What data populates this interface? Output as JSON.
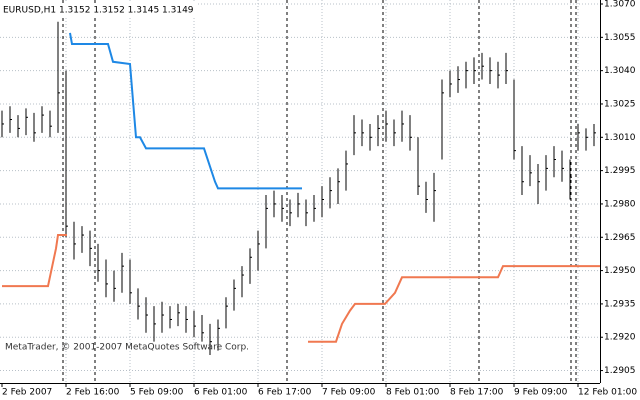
{
  "chart_data": {
    "type": "ohlc",
    "title": "EURUSD,H1  1.3152 1.3152 1.3145 1.3149",
    "annotation": "MetaTrader, © 2001-2007 MetaQuotes Software Corp.",
    "x": [
      0,
      2,
      4,
      6,
      8,
      10,
      12,
      14,
      16,
      18,
      20,
      22,
      24,
      26,
      28,
      30,
      32,
      34,
      36,
      38,
      40,
      42,
      44,
      46,
      48,
      50,
      52,
      54,
      56,
      58,
      60,
      62,
      64,
      66,
      68,
      70,
      72,
      74,
      76,
      78,
      80,
      82,
      84,
      86,
      88,
      90,
      92,
      94,
      96,
      98,
      100,
      102,
      104,
      106,
      108,
      110,
      112,
      114,
      116,
      118,
      120,
      122,
      124,
      126,
      128,
      130,
      132,
      134,
      136,
      138,
      140,
      142,
      144,
      146,
      148
    ],
    "high": [
      1.3022,
      1.3024,
      1.302,
      1.3023,
      1.3021,
      1.3024,
      1.3022,
      1.3062,
      1.304,
      1.2972,
      1.297,
      1.2968,
      1.2962,
      1.2955,
      1.295,
      1.2958,
      1.2955,
      1.2942,
      1.2938,
      1.2934,
      1.2936,
      1.2934,
      1.2935,
      1.2934,
      1.2932,
      1.293,
      1.2926,
      1.2928,
      1.2938,
      1.2946,
      1.2952,
      1.296,
      1.2968,
      1.2984,
      1.2986,
      1.2984,
      1.2982,
      1.2985,
      1.2982,
      1.2984,
      1.2988,
      1.2992,
      1.2996,
      1.3004,
      1.302,
      1.3018,
      1.3016,
      1.302,
      1.3022,
      1.3018,
      1.3022,
      1.302,
      1.301,
      1.299,
      1.2994,
      1.3036,
      1.304,
      1.3042,
      1.3044,
      1.3046,
      1.3048,
      1.3046,
      1.3044,
      1.3048,
      1.3036,
      1.3006,
      1.3002,
      1.2998,
      1.3002,
      1.3006,
      1.3004,
      1.3,
      1.3016,
      1.3014,
      1.3016
    ],
    "low": [
      1.301,
      1.3012,
      1.301,
      1.3011,
      1.3008,
      1.3012,
      1.301,
      1.3012,
      1.2965,
      1.2955,
      1.2958,
      1.2952,
      1.2945,
      1.2938,
      1.2936,
      1.294,
      1.2935,
      1.2928,
      1.2922,
      1.2918,
      1.2922,
      1.2924,
      1.2925,
      1.2922,
      1.292,
      1.2918,
      1.2912,
      1.2914,
      1.2924,
      1.2932,
      1.2938,
      1.2944,
      1.295,
      1.296,
      1.2974,
      1.2972,
      1.297,
      1.2974,
      1.297,
      1.2972,
      1.2974,
      1.2978,
      1.298,
      1.2986,
      1.3002,
      1.3006,
      1.3004,
      1.3006,
      1.3008,
      1.3006,
      1.3008,
      1.3004,
      1.2984,
      1.2976,
      1.2972,
      1.3,
      1.3028,
      1.303,
      1.3032,
      1.3034,
      1.3036,
      1.3034,
      1.3032,
      1.3034,
      1.3,
      1.2984,
      1.2988,
      1.298,
      1.2986,
      1.2992,
      1.299,
      1.2982,
      1.3004,
      1.3004,
      1.3006
    ],
    "close": [
      1.3016,
      1.3018,
      1.3014,
      1.3019,
      1.3012,
      1.302,
      1.3015,
      1.303,
      1.297,
      1.2962,
      1.2966,
      1.296,
      1.295,
      1.2944,
      1.2942,
      1.2952,
      1.294,
      1.2934,
      1.293,
      1.2926,
      1.293,
      1.2928,
      1.2931,
      1.2928,
      1.2925,
      1.2922,
      1.2918,
      1.2924,
      1.2934,
      1.2942,
      1.2948,
      1.2956,
      1.2962,
      1.2978,
      1.298,
      1.2978,
      1.2976,
      1.298,
      1.2976,
      1.2978,
      1.2982,
      1.2986,
      1.299,
      1.2998,
      1.3012,
      1.3012,
      1.301,
      1.3014,
      1.3016,
      1.3012,
      1.3016,
      1.301,
      1.2988,
      1.2982,
      1.2986,
      1.303,
      1.3034,
      1.3036,
      1.304,
      1.304,
      1.3042,
      1.304,
      1.3038,
      1.304,
      1.3004,
      1.299,
      1.2994,
      1.299,
      1.2996,
      1.3,
      1.2996,
      1.2992,
      1.3012,
      1.301,
      1.3012
    ],
    "bar_color": "#000000",
    "lines": [
      {
        "color": "#1e88e5",
        "x": [
          17,
          17.5,
          26.5,
          27.75,
          32,
          33.5,
          34.5,
          36,
          50.5,
          53.25,
          54,
          75
        ],
        "values": [
          1.3057,
          1.3052,
          1.3052,
          1.3044,
          1.3043,
          1.301,
          1.301,
          1.3005,
          1.3005,
          1.299,
          1.2987,
          1.2987
        ]
      },
      {
        "color": "#f07850",
        "x": [
          0,
          11.5,
          13.5,
          14,
          16.25
        ],
        "values": [
          1.2943,
          1.2943,
          1.296,
          1.2966,
          1.2966
        ]
      },
      {
        "color": "#f07850",
        "x": [
          76.5,
          83.5,
          85,
          87,
          88.25,
          95.75,
          98.25,
          100,
          124,
          125.25,
          149.5
        ],
        "values": [
          1.2918,
          1.2918,
          1.2926,
          1.2932,
          1.2935,
          1.2935,
          1.294,
          1.2947,
          1.2947,
          1.2952,
          1.2952
        ]
      }
    ],
    "xlim": [
      0,
      149.5
    ],
    "xticks": [
      {
        "value": 0,
        "label": "2 Feb 2007"
      },
      {
        "value": 16,
        "label": "2 Feb 16:00"
      },
      {
        "value": 32,
        "label": "5 Feb 09:00"
      },
      {
        "value": 48,
        "label": "6 Feb 01:00"
      },
      {
        "value": 64,
        "label": "6 Feb 17:00"
      },
      {
        "value": 80,
        "label": "7 Feb 09:00"
      },
      {
        "value": 96,
        "label": "8 Feb 01:00"
      },
      {
        "value": 112,
        "label": "8 Feb 17:00"
      },
      {
        "value": 128,
        "label": "9 Feb 09:00"
      },
      {
        "value": 144,
        "label": "12 Feb 01:00"
      }
    ],
    "ylim": [
      1.28994,
      1.30718
    ],
    "yticks": [
      {
        "value": 1.307,
        "label": "1.3070"
      },
      1.3055,
      {
        "value": 1.304,
        "label": "1.3040"
      },
      1.3025,
      {
        "value": 1.301,
        "label": "1.3010"
      },
      1.2995,
      {
        "value": 1.298,
        "label": "1.2980"
      },
      1.2965,
      {
        "value": 1.295,
        "label": "1.2950"
      },
      1.2935,
      {
        "value": 1.292,
        "label": "1.2920"
      },
      1.2905
    ],
    "grid": true
  }
}
